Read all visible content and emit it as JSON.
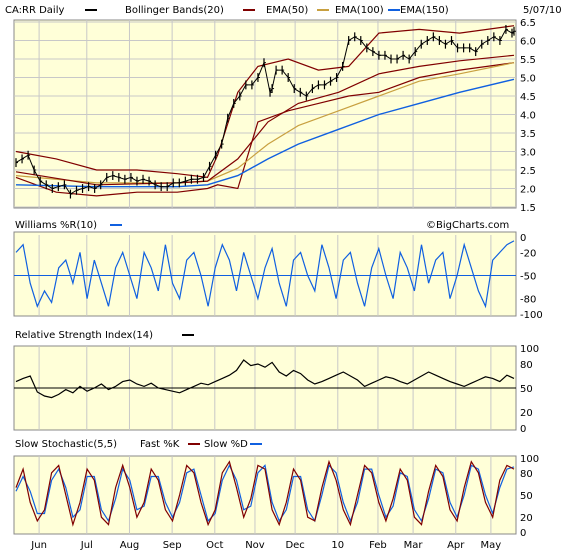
{
  "chart_data": [
    {
      "type": "line",
      "panel": "price",
      "header": {
        "symbol": "CA:RR Daily",
        "items": [
          "Bollinger Bands(20)",
          "EMA(50)",
          "EMA(100)",
          "EMA(150)"
        ],
        "date": "5/07/10"
      },
      "colors": {
        "price": "#000000",
        "bollinger": "#800000",
        "ema50": "#800000",
        "ema100": "#c8a040",
        "ema150": "#1060e0",
        "grid": "#c8c8c8",
        "bg": "#ffffd8"
      },
      "ylim": [
        1.5,
        6.5
      ],
      "yticks": [
        "1.5",
        "2.0",
        "2.5",
        "3.0",
        "3.5",
        "4.0",
        "4.5",
        "5.0",
        "5.5",
        "6.0",
        "6.5"
      ],
      "x_months": [
        "Jun",
        "Jul",
        "Aug",
        "Sep",
        "Oct",
        "Nov",
        "Dec",
        "10",
        "Feb",
        "Mar",
        "Apr",
        "May"
      ],
      "close": {
        "x": [
          0,
          3,
          6,
          9,
          12,
          15,
          18,
          21,
          24,
          27,
          30,
          33,
          36,
          39,
          42,
          45,
          48,
          51,
          54,
          57,
          60,
          63,
          66,
          69,
          72,
          75,
          78,
          81,
          84,
          87,
          90,
          93,
          96,
          99,
          102,
          105,
          108,
          111,
          114,
          117,
          120,
          123,
          126,
          127,
          129,
          132,
          135,
          138,
          141,
          144,
          147,
          150,
          153,
          156,
          159,
          162,
          165,
          168,
          171,
          174,
          177,
          180,
          183,
          186,
          189,
          192,
          195,
          198,
          201,
          204,
          207,
          210,
          213,
          216,
          219,
          222,
          225,
          228,
          231,
          234,
          237,
          240,
          243,
          246,
          247
        ],
        "y": [
          2.7,
          2.8,
          2.9,
          2.5,
          2.2,
          2.1,
          2.0,
          2.05,
          2.1,
          1.85,
          1.95,
          2.0,
          2.05,
          2.0,
          2.1,
          2.3,
          2.35,
          2.3,
          2.25,
          2.3,
          2.2,
          2.25,
          2.2,
          2.1,
          2.05,
          2.05,
          2.15,
          2.15,
          2.2,
          2.25,
          2.25,
          2.3,
          2.6,
          2.9,
          3.2,
          3.9,
          4.3,
          4.5,
          4.8,
          4.8,
          5.0,
          5.4,
          4.6,
          4.7,
          5.2,
          5.2,
          5.0,
          4.7,
          4.6,
          4.5,
          4.7,
          4.8,
          4.8,
          4.9,
          5.0,
          5.3,
          6.0,
          6.1,
          6.0,
          5.8,
          5.7,
          5.6,
          5.6,
          5.5,
          5.5,
          5.6,
          5.5,
          5.7,
          5.9,
          6.0,
          6.1,
          6.0,
          5.9,
          6.0,
          5.8,
          5.8,
          5.8,
          5.7,
          5.9,
          6.0,
          6.1,
          6.0,
          6.3,
          6.2,
          6.25
        ]
      },
      "bb_upper": {
        "x": [
          0,
          20,
          40,
          60,
          80,
          95,
          100,
          110,
          120,
          135,
          150,
          165,
          180,
          200,
          220,
          247
        ],
        "y": [
          3.0,
          2.8,
          2.5,
          2.5,
          2.4,
          2.3,
          2.9,
          4.6,
          5.3,
          5.5,
          5.2,
          5.3,
          6.2,
          6.3,
          6.2,
          6.4
        ]
      },
      "bb_lower": {
        "x": [
          0,
          20,
          40,
          60,
          80,
          95,
          100,
          110,
          120,
          135,
          150,
          165,
          180,
          200,
          220,
          247
        ],
        "y": [
          2.3,
          1.9,
          1.8,
          1.9,
          1.9,
          2.0,
          2.1,
          2.0,
          3.8,
          4.1,
          4.3,
          4.5,
          4.6,
          5.0,
          5.2,
          5.4
        ]
      },
      "ema50": {
        "x": [
          0,
          40,
          80,
          95,
          110,
          125,
          140,
          160,
          180,
          200,
          220,
          247
        ],
        "y": [
          2.45,
          2.1,
          2.15,
          2.2,
          2.8,
          3.8,
          4.3,
          4.6,
          5.1,
          5.3,
          5.45,
          5.6
        ]
      },
      "ema100": {
        "x": [
          0,
          40,
          80,
          95,
          110,
          125,
          140,
          160,
          180,
          200,
          220,
          247
        ],
        "y": [
          2.35,
          2.15,
          2.15,
          2.2,
          2.55,
          3.2,
          3.7,
          4.1,
          4.5,
          4.9,
          5.1,
          5.4
        ]
      },
      "ema150": {
        "x": [
          0,
          40,
          80,
          95,
          110,
          125,
          140,
          160,
          180,
          200,
          220,
          247
        ],
        "y": [
          2.1,
          2.05,
          2.05,
          2.1,
          2.35,
          2.8,
          3.2,
          3.6,
          4.0,
          4.3,
          4.6,
          4.95
        ]
      }
    },
    {
      "type": "line",
      "panel": "williams",
      "title": "Williams %R(10)",
      "watermark": "©BigCharts.com",
      "ylim": [
        -100,
        0
      ],
      "yticks": [
        "0",
        "-20",
        "-50",
        "-80",
        "-100"
      ],
      "reference": -50,
      "values": [
        -20,
        -10,
        -60,
        -90,
        -70,
        -85,
        -40,
        -30,
        -60,
        -20,
        -80,
        -30,
        -60,
        -90,
        -40,
        -20,
        -50,
        -80,
        -20,
        -40,
        -70,
        -10,
        -60,
        -80,
        -30,
        -20,
        -50,
        -90,
        -40,
        -10,
        -30,
        -70,
        -20,
        -50,
        -80,
        -40,
        -15,
        -60,
        -90,
        -30,
        -20,
        -50,
        -70,
        -10,
        -40,
        -80,
        -30,
        -20,
        -60,
        -90,
        -40,
        -15,
        -50,
        -80,
        -20,
        -40,
        -70,
        -10,
        -60,
        -30,
        -20,
        -80,
        -50,
        -10,
        -40,
        -70,
        -90,
        -30,
        -20,
        -10,
        -5
      ]
    },
    {
      "type": "line",
      "panel": "rsi",
      "title": "Relative Strength Index(14)",
      "ylim": [
        0,
        100
      ],
      "yticks": [
        "100",
        "80",
        "50",
        "20",
        "0"
      ],
      "reference": 50,
      "values": [
        58,
        62,
        65,
        45,
        40,
        38,
        42,
        48,
        44,
        52,
        46,
        50,
        55,
        48,
        52,
        58,
        60,
        55,
        52,
        56,
        50,
        48,
        46,
        44,
        48,
        52,
        56,
        54,
        58,
        62,
        66,
        72,
        85,
        78,
        80,
        76,
        82,
        70,
        65,
        72,
        68,
        60,
        55,
        58,
        62,
        66,
        70,
        65,
        60,
        52,
        56,
        60,
        64,
        62,
        58,
        55,
        60,
        65,
        70,
        66,
        62,
        58,
        55,
        52,
        56,
        60,
        64,
        62,
        58,
        66,
        62
      ]
    },
    {
      "type": "line",
      "panel": "stochastic",
      "title": "Slow Stochastic(5,5)",
      "legend": [
        "Fast %K",
        "Slow %D"
      ],
      "ylim": [
        0,
        100
      ],
      "yticks": [
        "100",
        "80",
        "50",
        "20",
        "0"
      ],
      "fast_k": [
        60,
        85,
        40,
        15,
        30,
        80,
        90,
        50,
        10,
        40,
        85,
        70,
        20,
        10,
        60,
        90,
        60,
        20,
        40,
        85,
        70,
        30,
        15,
        50,
        90,
        80,
        40,
        10,
        30,
        80,
        95,
        60,
        20,
        45,
        90,
        85,
        30,
        10,
        40,
        85,
        70,
        20,
        15,
        60,
        95,
        70,
        30,
        10,
        50,
        90,
        80,
        40,
        15,
        45,
        85,
        70,
        20,
        10,
        55,
        90,
        75,
        30,
        15,
        60,
        95,
        80,
        40,
        20,
        70,
        90,
        85
      ],
      "slow_d": [
        55,
        75,
        55,
        25,
        25,
        70,
        85,
        60,
        20,
        30,
        75,
        75,
        30,
        15,
        45,
        85,
        70,
        30,
        35,
        75,
        75,
        40,
        20,
        40,
        80,
        85,
        50,
        15,
        25,
        70,
        90,
        70,
        30,
        35,
        80,
        90,
        40,
        15,
        30,
        75,
        75,
        30,
        15,
        50,
        90,
        80,
        40,
        15,
        40,
        85,
        85,
        50,
        20,
        35,
        80,
        75,
        30,
        15,
        45,
        85,
        80,
        40,
        20,
        50,
        90,
        85,
        50,
        25,
        60,
        85,
        88
      ]
    }
  ]
}
